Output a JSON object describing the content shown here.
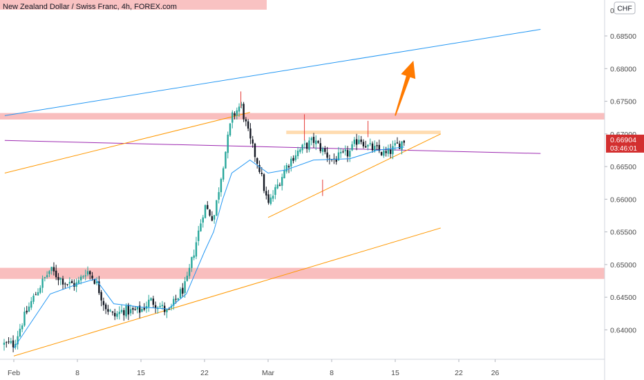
{
  "chart_data": {
    "type": "candlestick",
    "title": "New Zealand Dollar / Swiss Franc, 4h, FOREX.com",
    "currency": "CHF",
    "ylim": [
      0.6355,
      0.6905
    ],
    "y_ticks": [
      "0.68500",
      "0.68000",
      "0.67500",
      "0.67000",
      "0.66500",
      "0.66000",
      "0.65500",
      "0.65000",
      "0.64500",
      "0.64000"
    ],
    "y_ticks_values": [
      0.685,
      0.68,
      0.675,
      0.67,
      0.665,
      0.66,
      0.655,
      0.65,
      0.645,
      0.64
    ],
    "top_tick_partial": "0.",
    "x_ticks": [
      "Feb",
      "8",
      "15",
      "22",
      "Mar",
      "8",
      "15",
      "22",
      "26"
    ],
    "x_ticks_dates": [
      "2021-02-01",
      "2021-02-08",
      "2021-02-15",
      "2021-02-22",
      "2021-03-01",
      "2021-03-08",
      "2021-03-15",
      "2021-03-22",
      "2021-03-26"
    ],
    "x_range": [
      "2021-02-01",
      "2021-03-31"
    ],
    "current_price": "0.66904",
    "current_price_value": 0.66904,
    "countdown": "03:46:01",
    "colors": {
      "up": "#26a69a",
      "down": "#131722",
      "bg": "#ffffff",
      "zone": "#f8b3b3",
      "blue_line": "#2196f3",
      "purple_line": "#9c27b0",
      "orange_line": "#ff9800",
      "arrow": "#ff7a00",
      "price_label": "#d32f2f"
    },
    "close_path": [
      [
        "2021-02-01",
        0.6378
      ],
      [
        "2021-02-02",
        0.6415
      ],
      [
        "2021-02-03",
        0.6445
      ],
      [
        "2021-02-04",
        0.647
      ],
      [
        "2021-02-05",
        0.6492
      ],
      [
        "2021-02-06",
        0.648
      ],
      [
        "2021-02-07",
        0.647
      ],
      [
        "2021-02-08",
        0.647
      ],
      [
        "2021-02-09",
        0.6492
      ],
      [
        "2021-02-10",
        0.6475
      ],
      [
        "2021-02-11",
        0.6438
      ],
      [
        "2021-02-12",
        0.642
      ],
      [
        "2021-02-13",
        0.643
      ],
      [
        "2021-02-14",
        0.6428
      ],
      [
        "2021-02-15",
        0.643
      ],
      [
        "2021-02-16",
        0.6445
      ],
      [
        "2021-02-17",
        0.6438
      ],
      [
        "2021-02-18",
        0.6425
      ],
      [
        "2021-02-19",
        0.645
      ],
      [
        "2021-02-20",
        0.647
      ],
      [
        "2021-02-21",
        0.653
      ],
      [
        "2021-02-22",
        0.659
      ],
      [
        "2021-02-23",
        0.657
      ],
      [
        "2021-02-24",
        0.665
      ],
      [
        "2021-02-25",
        0.6725
      ],
      [
        "2021-02-26",
        0.6745
      ],
      [
        "2021-02-27",
        0.669
      ],
      [
        "2021-02-28",
        0.665
      ],
      [
        "2021-03-01",
        0.659
      ],
      [
        "2021-03-02",
        0.662
      ],
      [
        "2021-03-03",
        0.665
      ],
      [
        "2021-03-04",
        0.667
      ],
      [
        "2021-03-05",
        0.668
      ],
      [
        "2021-03-06",
        0.669
      ],
      [
        "2021-03-07",
        0.6675
      ],
      [
        "2021-03-08",
        0.666
      ],
      [
        "2021-03-09",
        0.6665
      ],
      [
        "2021-03-10",
        0.6672
      ],
      [
        "2021-03-11",
        0.6695
      ],
      [
        "2021-03-12",
        0.668
      ],
      [
        "2021-03-13",
        0.6675
      ],
      [
        "2021-03-14",
        0.6668
      ],
      [
        "2021-03-15",
        0.668
      ],
      [
        "2021-03-16",
        0.66904
      ]
    ],
    "ma_path": [
      [
        "2021-02-01",
        0.6372
      ],
      [
        "2021-02-05",
        0.6455
      ],
      [
        "2021-02-08",
        0.647
      ],
      [
        "2021-02-10",
        0.6478
      ],
      [
        "2021-02-12",
        0.644
      ],
      [
        "2021-02-15",
        0.6435
      ],
      [
        "2021-02-18",
        0.6432
      ],
      [
        "2021-02-20",
        0.6455
      ],
      [
        "2021-02-22",
        0.652
      ],
      [
        "2021-02-23",
        0.655
      ],
      [
        "2021-02-24",
        0.66
      ],
      [
        "2021-02-25",
        0.664
      ],
      [
        "2021-02-27",
        0.666
      ],
      [
        "2021-03-01",
        0.664
      ],
      [
        "2021-03-03",
        0.6645
      ],
      [
        "2021-03-06",
        0.666
      ],
      [
        "2021-03-10",
        0.6662
      ],
      [
        "2021-03-13",
        0.6675
      ],
      [
        "2021-03-16",
        0.668
      ]
    ],
    "zones": [
      {
        "name": "resistance-zone",
        "y1": 0.6722,
        "y2": 0.6732
      },
      {
        "name": "support-zone",
        "y1": 0.6478,
        "y2": 0.6495
      }
    ],
    "mini_zone": {
      "x1": "2021-03-03",
      "x2": "2021-03-20",
      "y1": 0.67,
      "y2": 0.6705
    },
    "trendlines": [
      {
        "name": "blue-trendline",
        "color": "#2196f3",
        "x1": "2021-01-31",
        "y1": 0.6728,
        "x2": "2021-03-31",
        "y2": 0.686
      },
      {
        "name": "purple-trendline",
        "color": "#9c27b0",
        "x1": "2021-01-31",
        "y1": 0.669,
        "x2": "2021-03-31",
        "y2": 0.667
      },
      {
        "name": "orange-upper-channel",
        "color": "#ff9800",
        "x1": "2021-01-31",
        "y1": 0.664,
        "x2": "2021-02-27",
        "y2": 0.6733
      },
      {
        "name": "orange-lower-channel",
        "color": "#ff9800",
        "x1": "2021-02-01",
        "y1": 0.636,
        "x2": "2021-03-20",
        "y2": 0.6556
      },
      {
        "name": "orange-triangle-support",
        "color": "#ff9800",
        "x1": "2021-02-29",
        "y1": 0.6572,
        "x2": "2021-03-20",
        "y2": 0.67
      }
    ],
    "arrow": {
      "x1": "2021-03-15",
      "y1": 0.6728,
      "x2": "2021-03-17",
      "y2": 0.6812
    }
  }
}
